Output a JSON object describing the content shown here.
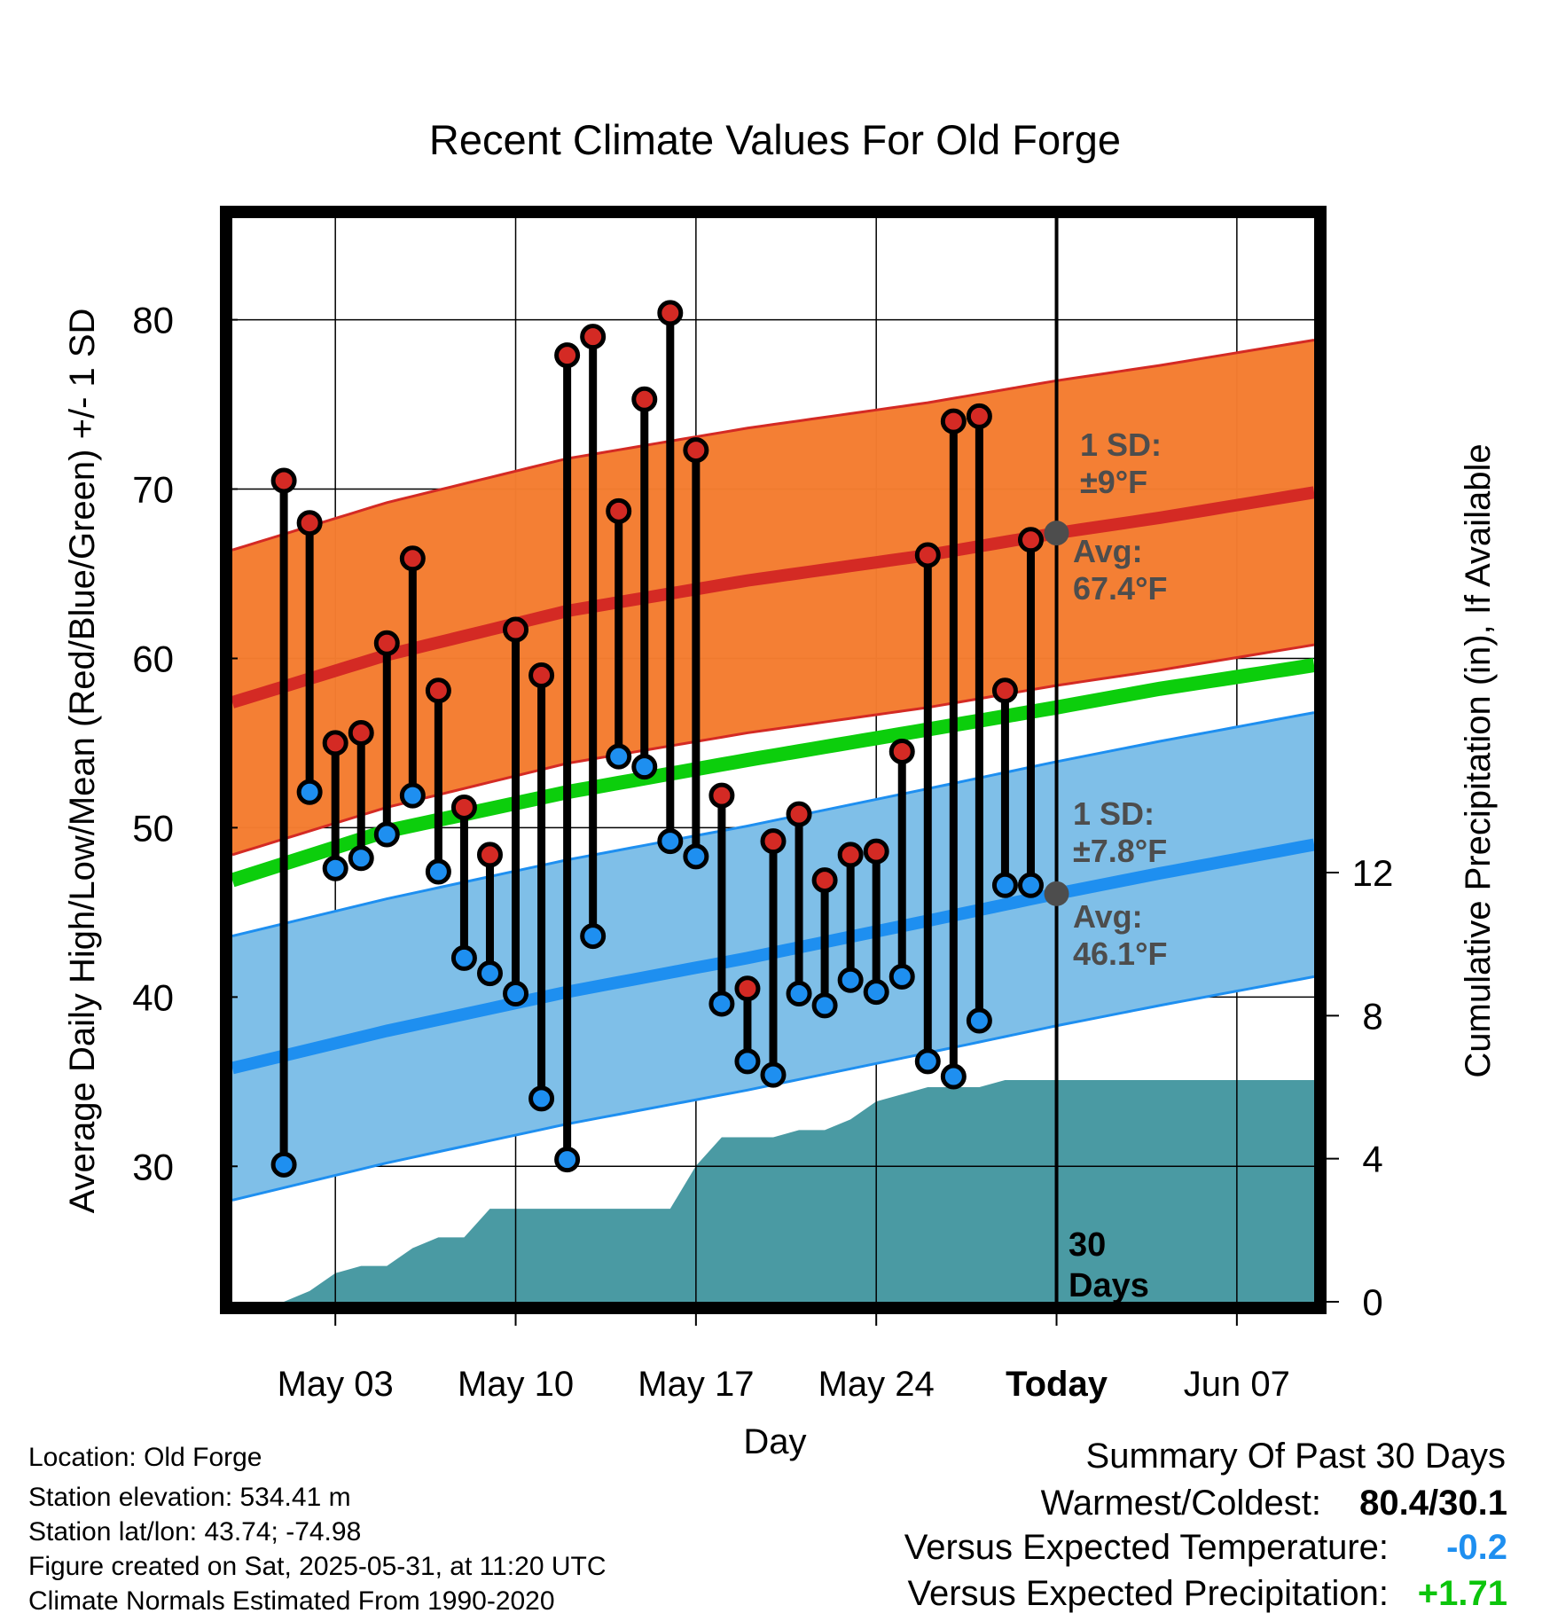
{
  "chart_data": {
    "type": "line",
    "title": "Recent Climate Values For Old Forge",
    "xlabel": "Day",
    "ylabel": "Average Daily High/Low/Mean (Red/Blue/Green) +/- 1 SD",
    "y2label": "Cumulative Precipitation (in), If Available",
    "ylim": [
      22,
      86
    ],
    "y2lim": [
      0,
      30.3
    ],
    "xlim": [
      "2025-04-29",
      "2025-06-10"
    ],
    "yticks": [
      30,
      40,
      50,
      60,
      70,
      80
    ],
    "y2ticks": [
      0,
      4,
      8,
      12
    ],
    "x_tick_labels": [
      {
        "date": "2025-05-03",
        "label": "May 03"
      },
      {
        "date": "2025-05-10",
        "label": "May 10"
      },
      {
        "date": "2025-05-17",
        "label": "May 17"
      },
      {
        "date": "2025-05-24",
        "label": "May 24"
      },
      {
        "date": "2025-05-31",
        "label": "Today"
      },
      {
        "date": "2025-06-07",
        "label": "Jun 07"
      }
    ],
    "grid": true,
    "today": "2025-05-31",
    "today_label": "30 Days",
    "colors": {
      "high_band": "#f47c30",
      "high_band_edge": "#d42a24",
      "normal_high": "#d42a24",
      "low_band": "#7fbfe8",
      "low_band_edge": "#1e8ff0",
      "normal_low": "#1e8ff0",
      "normal_mean": "#0cce0c",
      "precip": "#4a9aa3",
      "obs_high_marker": "#d42a24",
      "obs_low_marker": "#1e8ff0",
      "today_marker": "#4d4d4d"
    },
    "normals": {
      "x": [
        "2025-04-29",
        "2025-05-05",
        "2025-05-12",
        "2025-05-19",
        "2025-05-26",
        "2025-05-31",
        "2025-06-04",
        "2025-06-10"
      ],
      "high": [
        57.4,
        60.2,
        62.8,
        64.6,
        66.1,
        67.4,
        68.3,
        69.8
      ],
      "high_sd": 9,
      "mean": [
        46.9,
        49.8,
        52.1,
        54.0,
        55.8,
        57.1,
        58.2,
        59.6
      ],
      "low": [
        35.8,
        38.0,
        40.3,
        42.3,
        44.5,
        46.1,
        47.3,
        49.0
      ],
      "low_sd": 7.8
    },
    "series": [
      {
        "name": "High",
        "x": [
          "2025-05-01",
          "2025-05-02",
          "2025-05-03",
          "2025-05-04",
          "2025-05-05",
          "2025-05-06",
          "2025-05-07",
          "2025-05-08",
          "2025-05-09",
          "2025-05-10",
          "2025-05-11",
          "2025-05-12",
          "2025-05-13",
          "2025-05-14",
          "2025-05-15",
          "2025-05-16",
          "2025-05-17",
          "2025-05-18",
          "2025-05-19",
          "2025-05-20",
          "2025-05-21",
          "2025-05-22",
          "2025-05-23",
          "2025-05-24",
          "2025-05-25",
          "2025-05-26",
          "2025-05-27",
          "2025-05-28",
          "2025-05-29",
          "2025-05-30"
        ],
        "values": [
          70.5,
          68.0,
          55.0,
          55.6,
          60.9,
          65.9,
          58.1,
          51.2,
          48.4,
          61.7,
          59.0,
          77.9,
          79.0,
          68.7,
          75.3,
          80.4,
          72.3,
          51.9,
          40.5,
          49.2,
          50.8,
          46.9,
          48.4,
          48.6,
          54.5,
          66.1,
          74.0,
          74.3,
          58.1,
          67.0
        ]
      },
      {
        "name": "Low",
        "x": [
          "2025-05-01",
          "2025-05-02",
          "2025-05-03",
          "2025-05-04",
          "2025-05-05",
          "2025-05-06",
          "2025-05-07",
          "2025-05-08",
          "2025-05-09",
          "2025-05-10",
          "2025-05-11",
          "2025-05-12",
          "2025-05-13",
          "2025-05-14",
          "2025-05-15",
          "2025-05-16",
          "2025-05-17",
          "2025-05-18",
          "2025-05-19",
          "2025-05-20",
          "2025-05-21",
          "2025-05-22",
          "2025-05-23",
          "2025-05-24",
          "2025-05-25",
          "2025-05-26",
          "2025-05-27",
          "2025-05-28",
          "2025-05-29",
          "2025-05-30"
        ],
        "values": [
          30.1,
          52.1,
          47.6,
          48.2,
          49.6,
          51.9,
          47.4,
          42.3,
          41.4,
          40.2,
          34.0,
          30.4,
          43.6,
          54.2,
          53.6,
          49.2,
          48.3,
          39.6,
          36.2,
          35.4,
          40.2,
          39.5,
          41.0,
          40.3,
          41.2,
          36.2,
          35.3,
          38.6,
          46.6,
          46.6
        ]
      },
      {
        "name": "Cumulative Precipitation",
        "x": [
          "2025-05-01",
          "2025-05-02",
          "2025-05-03",
          "2025-05-04",
          "2025-05-05",
          "2025-05-06",
          "2025-05-07",
          "2025-05-08",
          "2025-05-09",
          "2025-05-10",
          "2025-05-11",
          "2025-05-12",
          "2025-05-13",
          "2025-05-14",
          "2025-05-15",
          "2025-05-16",
          "2025-05-17",
          "2025-05-18",
          "2025-05-19",
          "2025-05-20",
          "2025-05-21",
          "2025-05-22",
          "2025-05-23",
          "2025-05-24",
          "2025-05-25",
          "2025-05-26",
          "2025-05-27",
          "2025-05-28",
          "2025-05-29",
          "2025-05-30",
          "2025-05-31"
        ],
        "values": [
          0.0,
          0.3,
          0.8,
          1.0,
          1.0,
          1.5,
          1.8,
          1.8,
          2.6,
          2.6,
          2.6,
          2.6,
          2.6,
          2.6,
          2.6,
          2.6,
          3.8,
          4.6,
          4.6,
          4.6,
          4.8,
          4.8,
          5.1,
          5.6,
          5.8,
          6.0,
          6.0,
          6.0,
          6.2,
          6.2,
          6.2
        ]
      }
    ],
    "annotations": {
      "high_sd_label": "1 SD:",
      "high_sd_value": "±9°F",
      "high_avg_label": "Avg:",
      "high_avg_value": "67.4°F",
      "low_sd_label": "1 SD:",
      "low_sd_value": "±7.8°F",
      "low_avg_label": "Avg:",
      "low_avg_value": "46.1°F"
    }
  },
  "info": {
    "location": "Location: Old Forge",
    "elevation": "Station elevation: 534.41 m",
    "latlon": "Station lat/lon: 43.74; -74.98",
    "created": "Figure created on Sat, 2025-05-31, at 11:20 UTC",
    "normals": "Climate Normals Estimated From 1990-2020"
  },
  "summary": {
    "title": "Summary Of Past 30 Days",
    "warmest_label": "Warmest/Coldest:",
    "warmest_value": "80.4/30.1",
    "temp_label": "Versus Expected Temperature:",
    "temp_value": "-0.2",
    "temp_color": "#1e8ff0",
    "precip_label": "Versus Expected Precipitation:",
    "precip_value": "+1.71",
    "precip_color": "#0cc40c"
  }
}
